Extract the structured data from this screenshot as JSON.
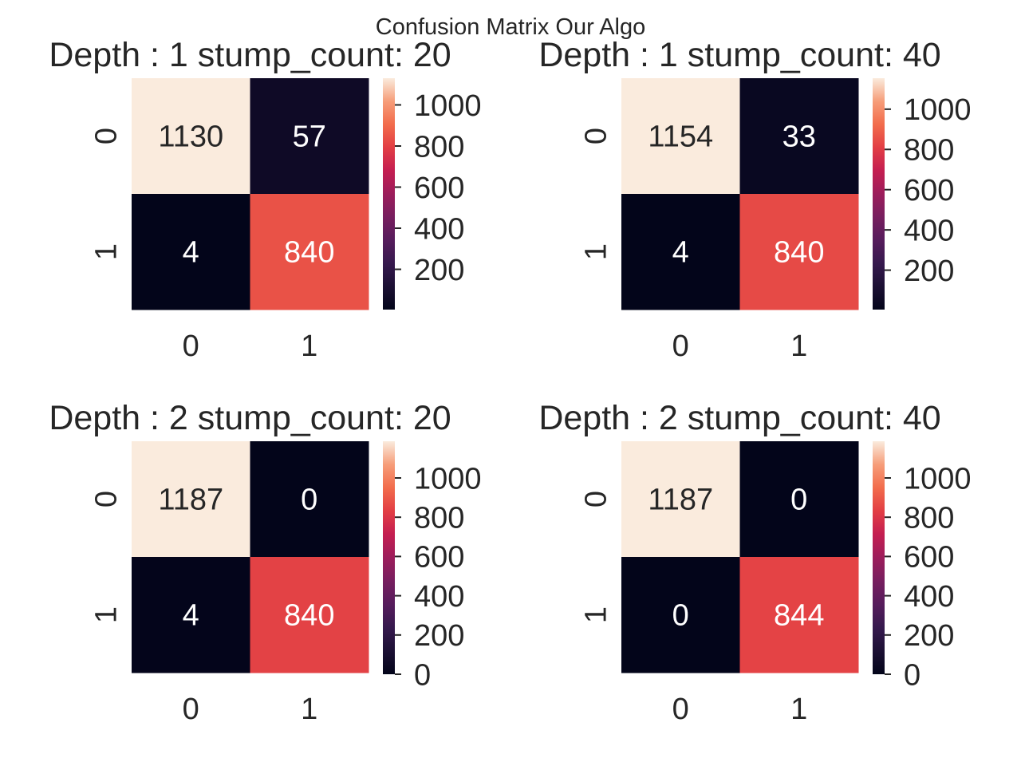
{
  "figure": {
    "title": "Confusion Matrix Our Algo"
  },
  "chart_data": [
    {
      "type": "heatmap",
      "title": "Depth : 1 stump_count: 20",
      "x_tick_labels": [
        "0",
        "1"
      ],
      "y_tick_labels": [
        "0",
        "1"
      ],
      "values": [
        [
          1130,
          57
        ],
        [
          4,
          840
        ]
      ],
      "color_range": [
        4,
        1130
      ],
      "colorbar_ticks": [
        200,
        400,
        600,
        800,
        1000
      ]
    },
    {
      "type": "heatmap",
      "title": "Depth : 1 stump_count: 40",
      "x_tick_labels": [
        "0",
        "1"
      ],
      "y_tick_labels": [
        "0",
        "1"
      ],
      "values": [
        [
          1154,
          33
        ],
        [
          4,
          840
        ]
      ],
      "color_range": [
        4,
        1154
      ],
      "colorbar_ticks": [
        200,
        400,
        600,
        800,
        1000
      ]
    },
    {
      "type": "heatmap",
      "title": "Depth : 2 stump_count: 20",
      "x_tick_labels": [
        "0",
        "1"
      ],
      "y_tick_labels": [
        "0",
        "1"
      ],
      "values": [
        [
          1187,
          0
        ],
        [
          4,
          840
        ]
      ],
      "color_range": [
        0,
        1187
      ],
      "colorbar_ticks": [
        0,
        200,
        400,
        600,
        800,
        1000
      ]
    },
    {
      "type": "heatmap",
      "title": "Depth : 2 stump_count: 40",
      "x_tick_labels": [
        "0",
        "1"
      ],
      "y_tick_labels": [
        "0",
        "1"
      ],
      "values": [
        [
          1187,
          0
        ],
        [
          0,
          844
        ]
      ],
      "color_range": [
        0,
        1187
      ],
      "colorbar_ticks": [
        0,
        200,
        400,
        600,
        800,
        1000
      ]
    }
  ]
}
